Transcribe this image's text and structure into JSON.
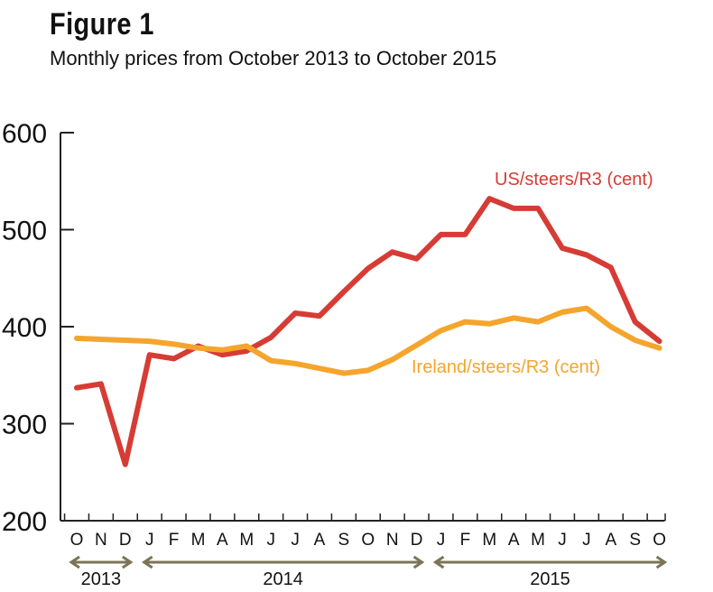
{
  "figure_label": "Figure 1",
  "chart_data": {
    "type": "line",
    "title": "Monthly prices from October 2013 to October 2015",
    "xlabel": "",
    "ylabel": "",
    "ylim": [
      200,
      600
    ],
    "yticks": [
      200,
      300,
      400,
      500,
      600
    ],
    "categories": [
      "O",
      "N",
      "D",
      "J",
      "F",
      "M",
      "A",
      "M",
      "J",
      "J",
      "A",
      "S",
      "O",
      "N",
      "D",
      "J",
      "F",
      "M",
      "A",
      "M",
      "J",
      "J",
      "A",
      "S",
      "O"
    ],
    "year_groups": [
      {
        "label": "2013",
        "from": 0,
        "to": 2
      },
      {
        "label": "2014",
        "from": 3,
        "to": 14
      },
      {
        "label": "2015",
        "from": 15,
        "to": 24
      }
    ],
    "series": [
      {
        "name": "US/steers/R3 (cent)",
        "color": "#d63c35",
        "values": [
          337,
          341,
          258,
          371,
          367,
          380,
          371,
          375,
          389,
          414,
          411,
          436,
          460,
          477,
          470,
          495,
          495,
          532,
          522,
          522,
          481,
          474,
          461,
          405,
          385
        ]
      },
      {
        "name": "Ireland/steers/R3 (cent)",
        "color": "#f5a52d",
        "values": [
          388,
          387,
          386,
          385,
          382,
          378,
          376,
          380,
          365,
          362,
          357,
          352,
          355,
          366,
          381,
          396,
          405,
          403,
          409,
          405,
          415,
          419,
          400,
          386,
          378
        ]
      }
    ],
    "grid": false,
    "legend": "inline labels"
  }
}
